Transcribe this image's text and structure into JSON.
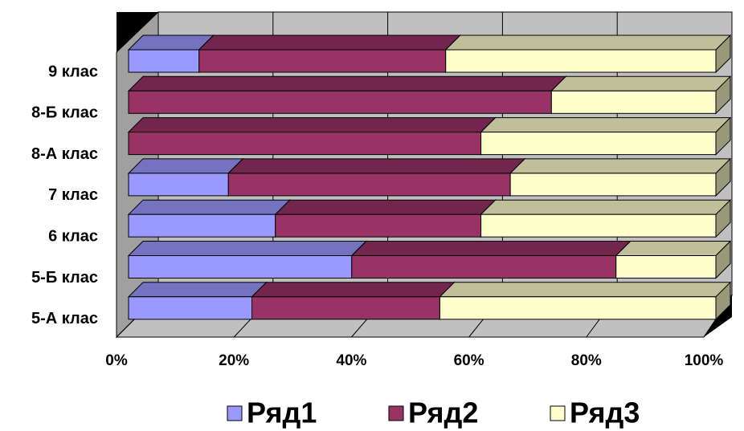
{
  "chart_data": {
    "type": "bar3d_stacked100",
    "categories": [
      "9 клас",
      "8-Б клас",
      "8-А клас",
      "7 клас",
      "6 клас",
      "5-Б клас",
      "5-А клас"
    ],
    "series": [
      {
        "name": "Ряд1",
        "color": "#9999ff",
        "values": [
          12,
          0,
          0,
          17,
          25,
          38,
          21
        ]
      },
      {
        "name": "Ряд2",
        "color": "#993366",
        "values": [
          42,
          72,
          60,
          48,
          35,
          45,
          32
        ]
      },
      {
        "name": "Ряд3",
        "color": "#ffffcc",
        "values": [
          46,
          28,
          40,
          35,
          40,
          17,
          47
        ]
      }
    ],
    "xlim": [
      0,
      100
    ],
    "xticks": [
      {
        "value": 0,
        "label": "0%"
      },
      {
        "value": 20,
        "label": "20%"
      },
      {
        "value": 40,
        "label": "40%"
      },
      {
        "value": 60,
        "label": "60%"
      },
      {
        "value": 80,
        "label": "80%"
      },
      {
        "value": 100,
        "label": "100%"
      }
    ],
    "grid": true,
    "legend": "bottom"
  }
}
